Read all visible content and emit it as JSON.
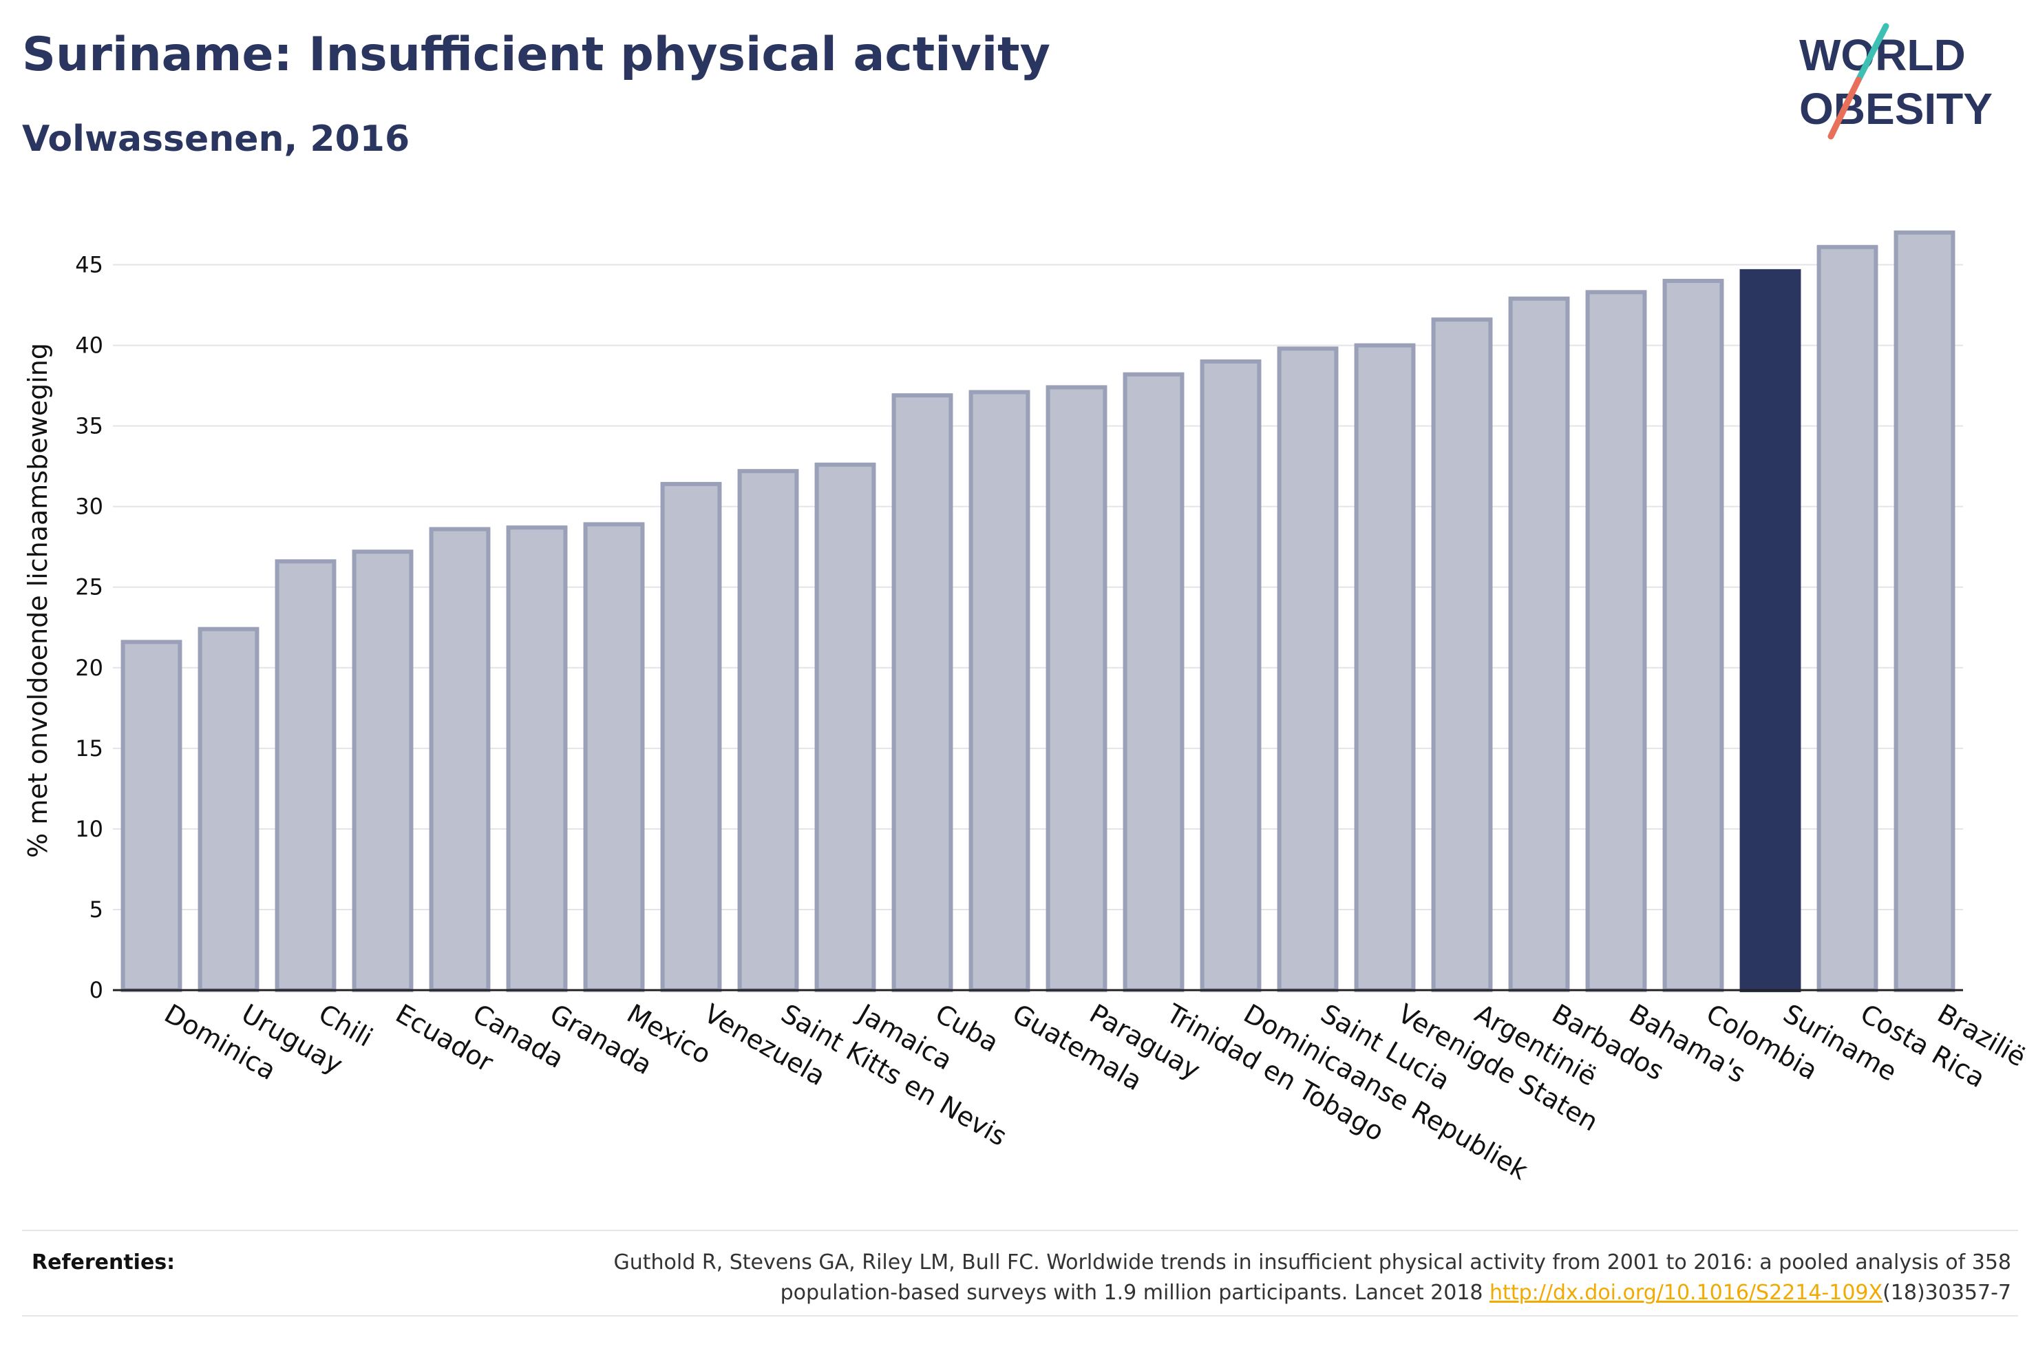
{
  "header": {
    "title": "Suriname: Insufficient physical activity",
    "subtitle": "Volwassenen, 2016"
  },
  "logo": {
    "line1": "WORLD",
    "line2": "OBESITY",
    "accent_teal": "#3dbfb4",
    "accent_coral": "#e8705a"
  },
  "colors": {
    "bar_default": "#bcc0cf",
    "bar_border": "#9aa0b8",
    "bar_highlight": "#2a3560",
    "text": "#2a3560"
  },
  "chart_data": {
    "type": "bar",
    "ylabel": "% met onvoldoende lichaamsbeweging",
    "ylim": [
      0,
      47.5
    ],
    "yticks": [
      0,
      5,
      10,
      15,
      20,
      25,
      30,
      35,
      40,
      45
    ],
    "grid": true,
    "highlight": "Suriname",
    "categories": [
      "Dominica",
      "Uruguay",
      "Chili",
      "Ecuador",
      "Canada",
      "Granada",
      "Mexico",
      "Venezuela",
      "Saint Kitts en Nevis",
      "Jamaica",
      "Cuba",
      "Guatemala",
      "Paraguay",
      "Trinidad en Tobago",
      "Dominicaanse Republiek",
      "Saint Lucia",
      "Verenigde Staten",
      "Argentinië",
      "Barbados",
      "Bahama's",
      "Colombia",
      "Suriname",
      "Costa Rica",
      "Brazilië"
    ],
    "values": [
      21.6,
      22.4,
      26.6,
      27.2,
      28.6,
      28.7,
      28.9,
      31.4,
      32.2,
      32.6,
      36.9,
      37.1,
      37.4,
      38.2,
      39.0,
      39.8,
      40.0,
      41.6,
      42.9,
      43.3,
      44.0,
      44.6,
      46.1,
      47.0
    ]
  },
  "footer": {
    "label": "Referenties:",
    "text_line1": "Guthold R, Stevens GA, Riley LM, Bull FC. Worldwide trends in insufficient physical activity from 2001 to 2016: a pooled analysis of 358",
    "text_line2_prefix": "population-based surveys with 1.9 million participants. Lancet 2018 ",
    "link": "http://dx.doi.org/10.1016/S2214-109X",
    "text_line2_suffix": "(18)30357-7"
  }
}
